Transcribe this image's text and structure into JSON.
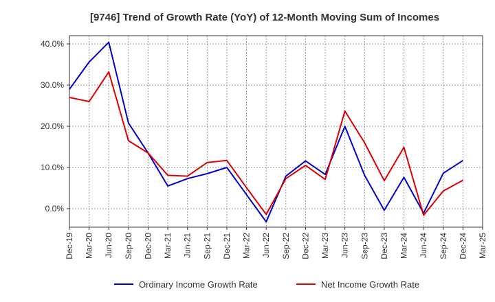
{
  "chart_data": {
    "type": "line",
    "title": "[9746]  Trend of Growth Rate (YoY) of 12-Month Moving Sum of Incomes",
    "xlabel": "",
    "ylabel": "",
    "categories": [
      "Dec-19",
      "Mar-20",
      "Jun-20",
      "Sep-20",
      "Dec-20",
      "Mar-21",
      "Jun-21",
      "Sep-21",
      "Dec-21",
      "Mar-22",
      "Jun-22",
      "Sep-22",
      "Dec-22",
      "Mar-23",
      "Jun-23",
      "Sep-23",
      "Dec-23",
      "Mar-24",
      "Jun-24",
      "Sep-24",
      "Dec-24",
      "Mar-25"
    ],
    "y_ticks": [
      "40.0%",
      "30.0%",
      "20.0%",
      "10.0%",
      "0.0%"
    ],
    "y_tick_values": [
      40,
      30,
      20,
      10,
      0
    ],
    "ylim": [
      -4.5,
      42
    ],
    "grid": true,
    "legend_position": "bottom",
    "series": [
      {
        "name": "Ordinary Income Growth Rate",
        "color": "#0000cc",
        "values": [
          29.0,
          35.6,
          40.4,
          20.8,
          13.5,
          5.5,
          7.3,
          8.5,
          10.0,
          3.4,
          -3.2,
          7.9,
          11.6,
          8.3,
          20.0,
          8.1,
          -0.4,
          7.6,
          -1.1,
          8.6,
          11.7,
          null
        ]
      },
      {
        "name": "Net Income Growth Rate",
        "color": "#dd0000",
        "values": [
          27.0,
          26.0,
          33.2,
          16.5,
          13.5,
          8.1,
          7.9,
          11.2,
          11.7,
          5.1,
          -1.4,
          7.3,
          10.5,
          7.1,
          23.7,
          16.0,
          6.8,
          14.9,
          -1.6,
          4.3,
          6.9,
          null
        ]
      }
    ]
  }
}
